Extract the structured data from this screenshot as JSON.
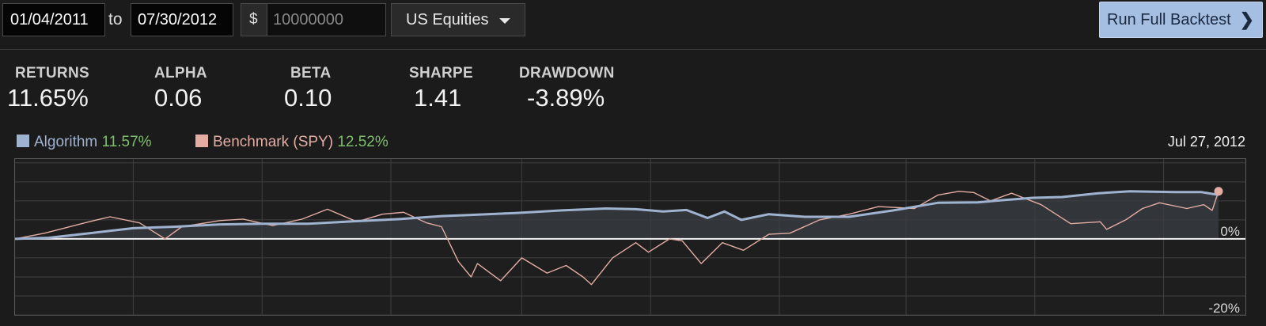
{
  "toolbar": {
    "start_date": "01/04/2011",
    "to_label": "to",
    "end_date": "07/30/2012",
    "currency_symbol": "$",
    "capital": "10000000",
    "universe": "US Equities",
    "run_label": "Run Full Backtest",
    "run_color": "#a5bfe3"
  },
  "metrics": [
    {
      "label": "RETURNS",
      "value": "11.65%"
    },
    {
      "label": "ALPHA",
      "value": "0.06"
    },
    {
      "label": "BETA",
      "value": "0.10"
    },
    {
      "label": "SHARPE",
      "value": "1.41"
    },
    {
      "label": "DRAWDOWN",
      "value": "-3.89%"
    }
  ],
  "legend": {
    "algorithm_label": "Algorithm",
    "algorithm_value": "11.57%",
    "algorithm_color": "#9fb3d1",
    "benchmark_label": "Benchmark (SPY)",
    "benchmark_value": "12.52%",
    "benchmark_color": "#e3ada3",
    "value_color": "#7cbf6a",
    "last_date": "Jul 27, 2012"
  },
  "chart_data": {
    "type": "line",
    "x_range": [
      "2011-01-04",
      "2012-07-27"
    ],
    "ylim": [
      -20,
      21
    ],
    "y_tick_labels": [
      "0%",
      "-20%"
    ],
    "series": [
      {
        "name": "Algorithm",
        "color": "#9fb3d1",
        "points": [
          [
            "2011-01-04",
            0
          ],
          [
            "2011-01-20",
            0.3
          ],
          [
            "2011-02-10",
            1.6
          ],
          [
            "2011-03-01",
            2.8
          ],
          [
            "2011-03-21",
            3.2
          ],
          [
            "2011-04-11",
            3.8
          ],
          [
            "2011-05-02",
            4.0
          ],
          [
            "2011-05-23",
            4.0
          ],
          [
            "2011-06-13",
            4.6
          ],
          [
            "2011-07-05",
            5.2
          ],
          [
            "2011-07-25",
            6.0
          ],
          [
            "2011-08-08",
            6.3
          ],
          [
            "2011-08-29",
            6.8
          ],
          [
            "2011-09-20",
            7.5
          ],
          [
            "2011-10-11",
            8.0
          ],
          [
            "2011-10-25",
            7.8
          ],
          [
            "2011-11-07",
            7.2
          ],
          [
            "2011-11-18",
            7.6
          ],
          [
            "2011-11-28",
            5.5
          ],
          [
            "2011-12-06",
            7.2
          ],
          [
            "2011-12-14",
            5.0
          ],
          [
            "2011-12-27",
            6.5
          ],
          [
            "2012-01-13",
            5.8
          ],
          [
            "2012-02-03",
            5.8
          ],
          [
            "2012-02-24",
            7.5
          ],
          [
            "2012-03-16",
            9.5
          ],
          [
            "2012-04-04",
            9.6
          ],
          [
            "2012-04-16",
            10.2
          ],
          [
            "2012-04-30",
            10.8
          ],
          [
            "2012-05-14",
            11.0
          ],
          [
            "2012-05-31",
            12.0
          ],
          [
            "2012-06-15",
            12.5
          ],
          [
            "2012-07-06",
            12.3
          ],
          [
            "2012-07-19",
            12.3
          ],
          [
            "2012-07-27",
            11.57
          ]
        ]
      },
      {
        "name": "Benchmark (SPY)",
        "color": "#e3ada3",
        "points": [
          [
            "2011-01-04",
            0
          ],
          [
            "2011-01-18",
            1.5
          ],
          [
            "2011-02-08",
            4.5
          ],
          [
            "2011-02-18",
            5.8
          ],
          [
            "2011-03-04",
            4.2
          ],
          [
            "2011-03-16",
            0
          ],
          [
            "2011-03-24",
            3.2
          ],
          [
            "2011-04-11",
            4.8
          ],
          [
            "2011-04-22",
            5.2
          ],
          [
            "2011-05-06",
            3.5
          ],
          [
            "2011-05-20",
            5.2
          ],
          [
            "2011-06-01",
            7.8
          ],
          [
            "2011-06-15",
            4.5
          ],
          [
            "2011-06-27",
            6.5
          ],
          [
            "2011-07-07",
            7.0
          ],
          [
            "2011-07-18",
            4.2
          ],
          [
            "2011-07-25",
            3.2
          ],
          [
            "2011-08-02",
            -6.0
          ],
          [
            "2011-08-08",
            -10.0
          ],
          [
            "2011-08-11",
            -6.5
          ],
          [
            "2011-08-22",
            -11.0
          ],
          [
            "2011-09-01",
            -5.0
          ],
          [
            "2011-09-13",
            -9.0
          ],
          [
            "2011-09-22",
            -7.0
          ],
          [
            "2011-09-30",
            -10.0
          ],
          [
            "2011-10-04",
            -12.0
          ],
          [
            "2011-10-14",
            -5.0
          ],
          [
            "2011-10-25",
            -1.0
          ],
          [
            "2011-10-31",
            -3.5
          ],
          [
            "2011-11-10",
            0
          ],
          [
            "2011-11-16",
            -0.5
          ],
          [
            "2011-11-25",
            -6.5
          ],
          [
            "2011-12-05",
            -1.0
          ],
          [
            "2011-12-15",
            -3.0
          ],
          [
            "2011-12-27",
            1.2
          ],
          [
            "2012-01-06",
            1.5
          ],
          [
            "2012-01-20",
            5.0
          ],
          [
            "2012-02-03",
            6.5
          ],
          [
            "2012-02-17",
            8.5
          ],
          [
            "2012-03-05",
            8.0
          ],
          [
            "2012-03-16",
            11.5
          ],
          [
            "2012-03-26",
            12.5
          ],
          [
            "2012-04-02",
            12.2
          ],
          [
            "2012-04-10",
            10.0
          ],
          [
            "2012-04-20",
            12.0
          ],
          [
            "2012-05-04",
            9.0
          ],
          [
            "2012-05-18",
            4.0
          ],
          [
            "2012-06-01",
            4.5
          ],
          [
            "2012-06-04",
            2.5
          ],
          [
            "2012-06-13",
            5.0
          ],
          [
            "2012-06-21",
            8.0
          ],
          [
            "2012-06-29",
            9.5
          ],
          [
            "2012-07-12",
            8.0
          ],
          [
            "2012-07-20",
            9.0
          ],
          [
            "2012-07-24",
            7.5
          ],
          [
            "2012-07-27",
            12.52
          ]
        ]
      }
    ],
    "zero_line": true,
    "grid": true,
    "legend_position": "top-left"
  }
}
